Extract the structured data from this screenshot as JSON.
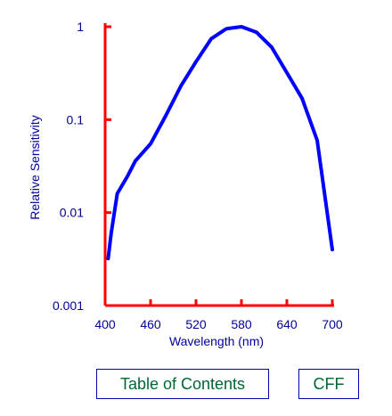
{
  "chart_data": {
    "type": "line",
    "title": "",
    "xlabel": "Wavelength (nm)",
    "ylabel": "Relative Sensitivity",
    "xlim": [
      400,
      700
    ],
    "ylim": [
      0.001,
      1
    ],
    "yscale": "log",
    "grid": false,
    "x_ticks": [
      400,
      460,
      520,
      580,
      640,
      700
    ],
    "x_tick_labels": [
      "400",
      "460",
      "520",
      "580",
      "640",
      "700"
    ],
    "y_ticks": [
      0.001,
      0.01,
      0.1,
      1
    ],
    "y_tick_labels": [
      "0.001",
      "0.01",
      "0.1",
      "1"
    ],
    "series": [
      {
        "x": [
          404,
          408,
          416,
          430,
          440,
          460,
          480,
          500,
          520,
          540,
          560,
          580,
          600,
          620,
          640,
          660,
          680,
          700
        ],
        "y": [
          0.0032,
          0.006,
          0.016,
          0.025,
          0.036,
          0.055,
          0.11,
          0.23,
          0.42,
          0.74,
          0.95,
          1.0,
          0.87,
          0.6,
          0.32,
          0.17,
          0.06,
          0.004
        ]
      }
    ],
    "colors": {
      "axis": "#ff0000",
      "line": "#0000ff",
      "labels": "#000099"
    }
  },
  "nav": {
    "toc_label": "Table of Contents",
    "cff_label": "CFF"
  }
}
